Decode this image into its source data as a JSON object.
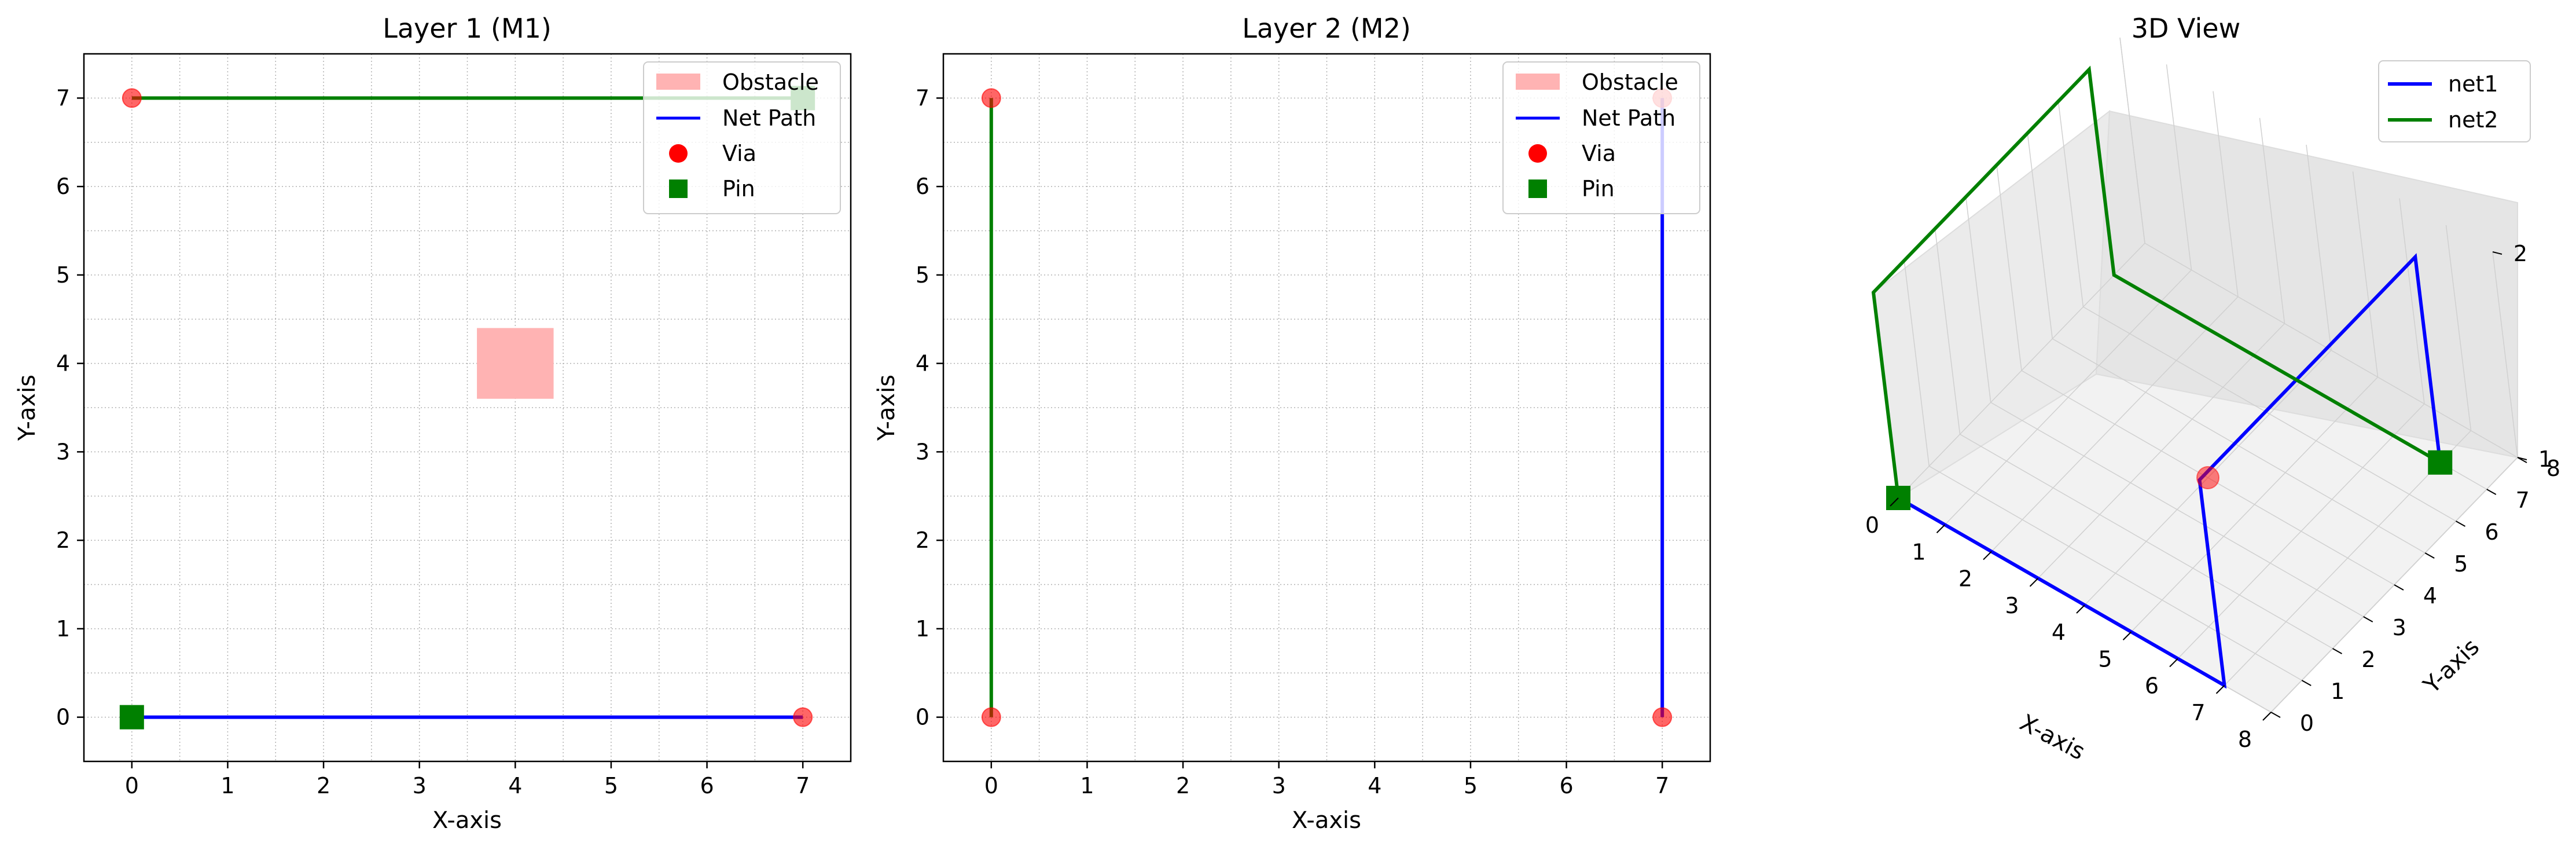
{
  "chart_data": [
    {
      "type": "line",
      "title": "Layer 1 (M1)",
      "xlabel": "X-axis",
      "ylabel": "Y-axis",
      "xlim": [
        -0.5,
        7.5
      ],
      "ylim": [
        -0.5,
        7.5
      ],
      "xticks": [
        "0",
        "1",
        "2",
        "3",
        "4",
        "5",
        "6",
        "7"
      ],
      "yticks": [
        "0",
        "1",
        "2",
        "3",
        "4",
        "5",
        "6",
        "7"
      ],
      "grid": "dotted, at integer and half-integer positions",
      "legend": [
        "Obstacle",
        "Net Path",
        "Via",
        "Pin"
      ],
      "legend_placement": "top-right",
      "obstacles": [
        {
          "x": [
            3.6,
            4.4
          ],
          "y": [
            3.6,
            4.4
          ],
          "color": "#ffb3b3"
        }
      ],
      "paths": [
        {
          "points": [
            [
              0,
              0
            ],
            [
              7,
              0
            ]
          ],
          "color": "#0000ff"
        },
        {
          "points": [
            [
              0,
              7
            ],
            [
              7,
              7
            ]
          ],
          "color": "#008000"
        }
      ],
      "vias": [
        [
          0,
          7
        ],
        [
          7,
          0
        ]
      ],
      "pins": [
        [
          0,
          0
        ],
        [
          7,
          7
        ]
      ]
    },
    {
      "type": "line",
      "title": "Layer 2 (M2)",
      "xlabel": "X-axis",
      "ylabel": "Y-axis",
      "xlim": [
        -0.5,
        7.5
      ],
      "ylim": [
        -0.5,
        7.5
      ],
      "xticks": [
        "0",
        "1",
        "2",
        "3",
        "4",
        "5",
        "6",
        "7"
      ],
      "yticks": [
        "0",
        "1",
        "2",
        "3",
        "4",
        "5",
        "6",
        "7"
      ],
      "grid": "dotted, at integer and half-integer positions",
      "legend": [
        "Obstacle",
        "Net Path",
        "Via",
        "Pin"
      ],
      "legend_placement": "top-right",
      "paths": [
        {
          "points": [
            [
              0,
              0
            ],
            [
              0,
              7
            ]
          ],
          "color": "#008000"
        },
        {
          "points": [
            [
              7,
              0
            ],
            [
              7,
              7
            ]
          ],
          "color": "#0000ff"
        }
      ],
      "vias": [
        [
          0,
          7
        ],
        [
          0,
          0
        ],
        [
          7,
          7
        ],
        [
          7,
          0
        ]
      ],
      "pins": []
    },
    {
      "type": "line",
      "title": "3D View",
      "xlabel": "X-axis",
      "ylabel": "Y-axis",
      "xticks": [
        "0",
        "1",
        "2",
        "3",
        "4",
        "5",
        "6",
        "7",
        "8"
      ],
      "yticks": [
        "0",
        "1",
        "2",
        "3",
        "4",
        "5",
        "6",
        "7",
        "8"
      ],
      "zticks": [
        "1",
        "2"
      ],
      "xlim": [
        0,
        8
      ],
      "ylim": [
        0,
        8
      ],
      "zlim": [
        1,
        2
      ],
      "legend_placement": "top-right",
      "series": [
        {
          "name": "net1",
          "color": "#0000ff",
          "points": [
            [
              0,
              0,
              1
            ],
            [
              7,
              0,
              1
            ],
            [
              7,
              0,
              2
            ],
            [
              7,
              7,
              2
            ],
            [
              7,
              7,
              1
            ]
          ]
        },
        {
          "name": "net2",
          "color": "#008000",
          "points": [
            [
              7,
              7,
              1
            ],
            [
              0,
              7,
              1
            ],
            [
              0,
              7,
              2
            ],
            [
              0,
              0,
              2
            ],
            [
              0,
              0,
              1
            ]
          ]
        }
      ],
      "pins": [
        [
          0,
          0,
          1
        ],
        [
          7,
          7,
          1
        ]
      ],
      "vias": [
        [
          4,
          4,
          1
        ]
      ]
    }
  ],
  "colors": {
    "via": "#ff0000",
    "pin": "#008000",
    "obstacle": "#ffb3b3",
    "net_path": "#0000ff",
    "grid": "#b0b0b0"
  }
}
